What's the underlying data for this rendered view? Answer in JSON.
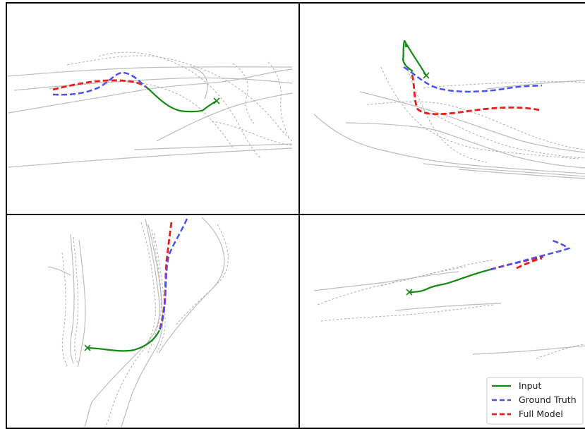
{
  "legend": {
    "items": [
      {
        "key": "input",
        "label": "Input",
        "color": "#138a13",
        "style": "solid"
      },
      {
        "key": "ground_truth",
        "label": "Ground Truth",
        "color": "#4b52f0",
        "style": "dashed"
      },
      {
        "key": "full_model",
        "label": "Full Model",
        "color": "#ee1b1b",
        "style": "dashed"
      }
    ]
  },
  "colors": {
    "input": "#138a13",
    "ground_truth": "#4b52f0",
    "full_model": "#ee1b1b",
    "context_track": "#bdbdbd",
    "panel_border": "#000000"
  },
  "layout_grid": {
    "rows": 2,
    "cols": 2
  },
  "markers": {
    "start_marker": "x-mark-icon"
  }
}
